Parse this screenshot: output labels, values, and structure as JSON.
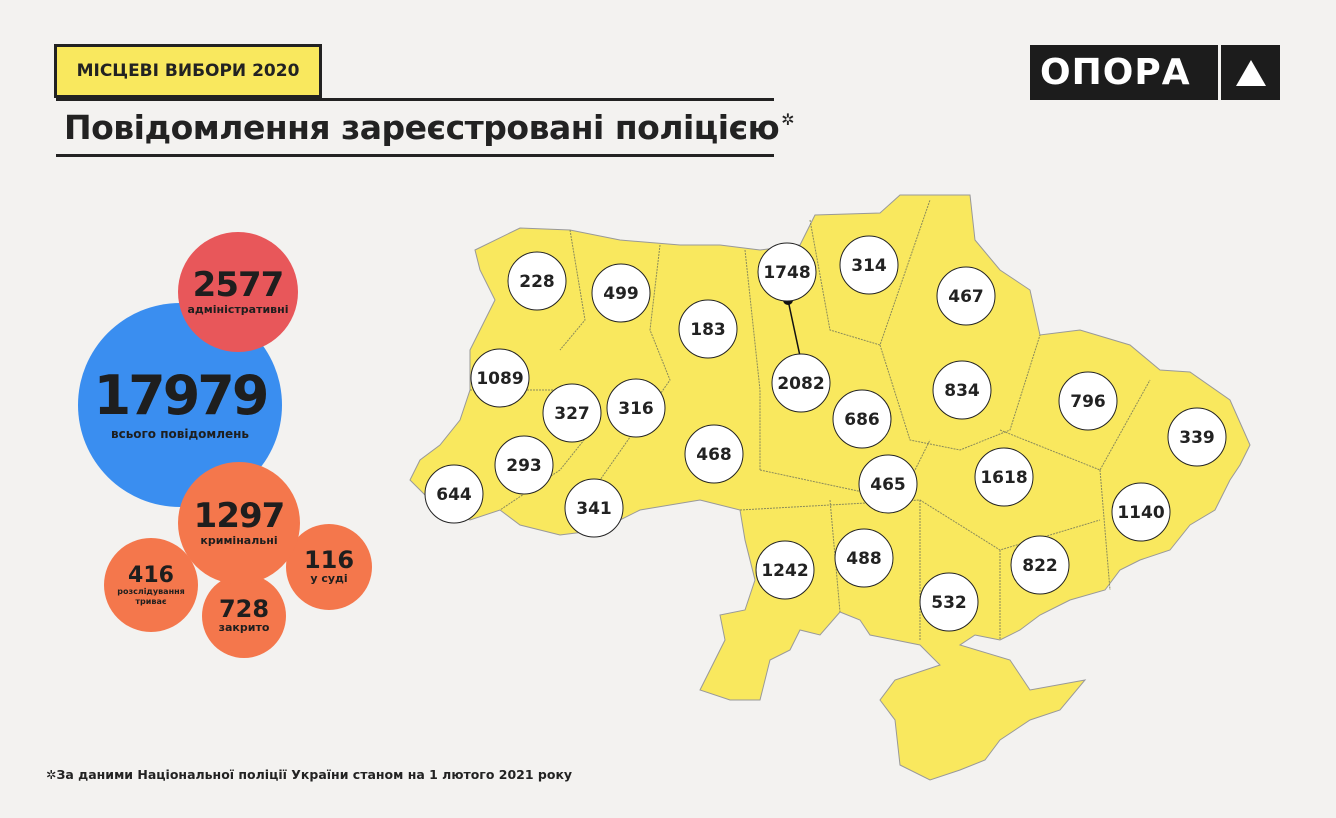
{
  "header": {
    "tag": "МІСЦЕВІ ВИБОРИ 2020",
    "title": "Повідомлення зареєстровані поліцією",
    "title_mark": "✲",
    "logo": "ОПОРА"
  },
  "summary": {
    "total": {
      "value": "17979",
      "label": "всього повідомлень",
      "color": "#3a8ef0"
    },
    "administrative": {
      "value": "2577",
      "label": "адміністративні",
      "color": "#e8575a"
    },
    "criminal": {
      "value": "1297",
      "label": "кримінальні",
      "color": "#f4774c"
    },
    "investigation": {
      "value": "416",
      "label": "розслідування триває",
      "color": "#f4774c"
    },
    "closed": {
      "value": "728",
      "label": "закрито",
      "color": "#f4774c"
    },
    "court": {
      "value": "116",
      "label": "у суді",
      "color": "#f4774c"
    }
  },
  "map": {
    "fill": "#f9e85e",
    "regions": [
      "228",
      "499",
      "183",
      "1748",
      "314",
      "467",
      "1089",
      "327",
      "316",
      "2082",
      "686",
      "834",
      "796",
      "339",
      "293",
      "468",
      "465",
      "1618",
      "644",
      "341",
      "1140",
      "1242",
      "488",
      "532",
      "822"
    ]
  },
  "footnote": "✲За даними Національної поліції України станом на 1 лютого 2021 року"
}
